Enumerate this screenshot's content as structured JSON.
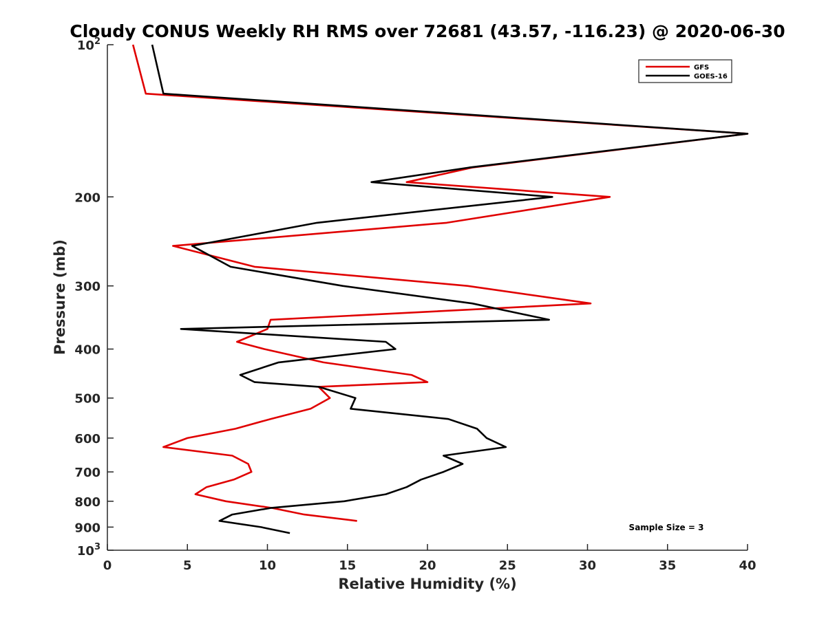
{
  "chart_data": {
    "type": "line",
    "title": "Cloudy CONUS Weekly RH RMS over 72681 (43.57, -116.23) @ 2020-06-30",
    "xlabel": "Relative Humidity (%)",
    "ylabel": "Pressure (mb)",
    "xlim": [
      0,
      40
    ],
    "ylim": [
      100,
      1000
    ],
    "y_scale": "log",
    "y_reversed": true,
    "grid": false,
    "legend_position": "top-right",
    "x_ticks": [
      0,
      5,
      10,
      15,
      20,
      25,
      30,
      35,
      40
    ],
    "y_ticks": [
      {
        "value": 100,
        "label": "10",
        "sup": "2"
      },
      {
        "value": 200,
        "label": "200"
      },
      {
        "value": 300,
        "label": "300"
      },
      {
        "value": 400,
        "label": "400"
      },
      {
        "value": 500,
        "label": "500"
      },
      {
        "value": 600,
        "label": "600"
      },
      {
        "value": 700,
        "label": "700"
      },
      {
        "value": 800,
        "label": "800"
      },
      {
        "value": 900,
        "label": "900"
      },
      {
        "value": 1000,
        "label": "10",
        "sup": "3"
      }
    ],
    "series": [
      {
        "name": "GFS",
        "color": "#e00000",
        "points": [
          {
            "x": 1.6,
            "y": 100
          },
          {
            "x": 2.4,
            "y": 125
          },
          {
            "x": 40.0,
            "y": 150
          },
          {
            "x": 22.8,
            "y": 175
          },
          {
            "x": 18.7,
            "y": 187
          },
          {
            "x": 31.4,
            "y": 200
          },
          {
            "x": 21.2,
            "y": 225
          },
          {
            "x": 4.1,
            "y": 250
          },
          {
            "x": 9.2,
            "y": 275
          },
          {
            "x": 22.5,
            "y": 300
          },
          {
            "x": 30.2,
            "y": 325
          },
          {
            "x": 10.2,
            "y": 350
          },
          {
            "x": 10.0,
            "y": 365
          },
          {
            "x": 8.1,
            "y": 387
          },
          {
            "x": 9.8,
            "y": 400
          },
          {
            "x": 13.5,
            "y": 425
          },
          {
            "x": 19.0,
            "y": 450
          },
          {
            "x": 20.0,
            "y": 465
          },
          {
            "x": 13.2,
            "y": 475
          },
          {
            "x": 13.9,
            "y": 500
          },
          {
            "x": 12.7,
            "y": 525
          },
          {
            "x": 10.2,
            "y": 550
          },
          {
            "x": 8.0,
            "y": 575
          },
          {
            "x": 5.0,
            "y": 600
          },
          {
            "x": 3.5,
            "y": 625
          },
          {
            "x": 7.8,
            "y": 650
          },
          {
            "x": 8.8,
            "y": 675
          },
          {
            "x": 9.0,
            "y": 700
          },
          {
            "x": 7.9,
            "y": 725
          },
          {
            "x": 6.2,
            "y": 750
          },
          {
            "x": 5.5,
            "y": 775
          },
          {
            "x": 7.4,
            "y": 800
          },
          {
            "x": 10.3,
            "y": 825
          },
          {
            "x": 12.3,
            "y": 850
          },
          {
            "x": 15.6,
            "y": 875
          }
        ]
      },
      {
        "name": "GOES-16",
        "color": "#000000",
        "points": [
          {
            "x": 2.8,
            "y": 100
          },
          {
            "x": 3.5,
            "y": 125
          },
          {
            "x": 40.0,
            "y": 150
          },
          {
            "x": 22.6,
            "y": 175
          },
          {
            "x": 16.5,
            "y": 187
          },
          {
            "x": 27.8,
            "y": 200
          },
          {
            "x": 13.1,
            "y": 225
          },
          {
            "x": 5.3,
            "y": 250
          },
          {
            "x": 7.7,
            "y": 275
          },
          {
            "x": 14.7,
            "y": 300
          },
          {
            "x": 22.8,
            "y": 325
          },
          {
            "x": 27.6,
            "y": 350
          },
          {
            "x": 4.6,
            "y": 365
          },
          {
            "x": 17.4,
            "y": 387
          },
          {
            "x": 18.0,
            "y": 400
          },
          {
            "x": 10.7,
            "y": 425
          },
          {
            "x": 8.3,
            "y": 450
          },
          {
            "x": 9.2,
            "y": 465
          },
          {
            "x": 13.2,
            "y": 475
          },
          {
            "x": 15.5,
            "y": 500
          },
          {
            "x": 15.2,
            "y": 525
          },
          {
            "x": 21.3,
            "y": 550
          },
          {
            "x": 23.1,
            "y": 575
          },
          {
            "x": 23.7,
            "y": 600
          },
          {
            "x": 24.9,
            "y": 625
          },
          {
            "x": 21.0,
            "y": 650
          },
          {
            "x": 22.2,
            "y": 675
          },
          {
            "x": 21.0,
            "y": 700
          },
          {
            "x": 19.6,
            "y": 725
          },
          {
            "x": 18.7,
            "y": 750
          },
          {
            "x": 17.4,
            "y": 775
          },
          {
            "x": 14.8,
            "y": 800
          },
          {
            "x": 10.2,
            "y": 825
          },
          {
            "x": 7.8,
            "y": 850
          },
          {
            "x": 7.0,
            "y": 875
          },
          {
            "x": 9.6,
            "y": 900
          },
          {
            "x": 11.4,
            "y": 925
          }
        ]
      }
    ],
    "annotation": "Sample Size = 3"
  }
}
